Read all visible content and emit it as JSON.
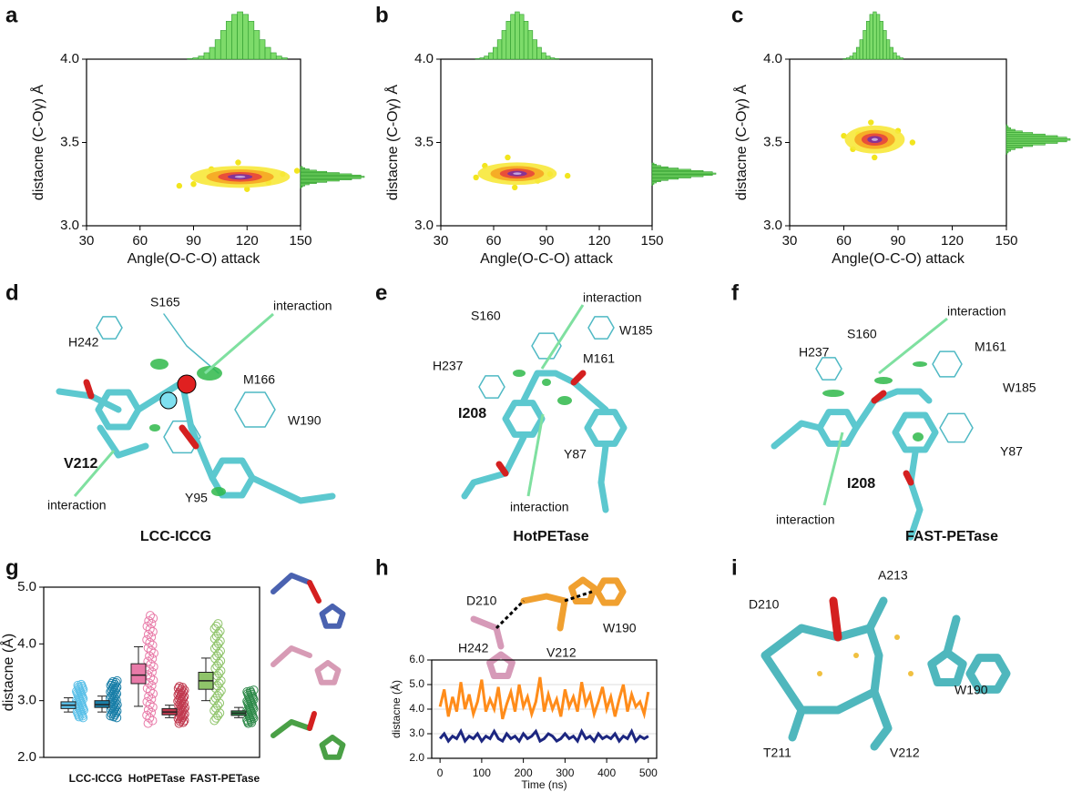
{
  "panel_labels": [
    "a",
    "b",
    "c",
    "d",
    "e",
    "f",
    "g",
    "h",
    "i"
  ],
  "chart_data": [
    {
      "type": "scatter",
      "xlabel": "Angle(O-C-O) attack",
      "ylabel": "distacne (C-Oγ) Å",
      "xlim": [
        30,
        150
      ],
      "xticks": [
        30,
        60,
        90,
        120,
        150
      ],
      "ylim": [
        3,
        4
      ],
      "yticks": [
        {
          "value": 3,
          "label": "3.0"
        },
        3.5,
        {
          "value": 4,
          "label": "4.0"
        }
      ],
      "color": "#f2e51e",
      "hist_color": "#7ddb6a",
      "density_colors": [
        "#f7e83a",
        "#f5a623",
        "#e8453c",
        "#7b2fa0",
        "#c9b3e6"
      ],
      "x": [
        117,
        105,
        128,
        90,
        140,
        82,
        148,
        115,
        120,
        100,
        132
      ],
      "y": [
        3.3,
        3.28,
        3.32,
        3.25,
        3.31,
        3.24,
        3.33,
        3.38,
        3.22,
        3.34,
        3.26
      ]
    },
    {
      "type": "scatter",
      "xlabel": "Angle(O-C-O) attack",
      "ylabel": "distacne (C-Oγ) Å",
      "xlim": [
        30,
        150
      ],
      "xticks": [
        30,
        60,
        90,
        120,
        150
      ],
      "ylim": [
        3,
        4
      ],
      "yticks": [
        {
          "value": 3,
          "label": "3.0"
        },
        3.5,
        {
          "value": 4,
          "label": "4.0"
        }
      ],
      "color": "#f2e51e",
      "hist_color": "#7ddb6a",
      "density_colors": [
        "#f7e83a",
        "#f5a623",
        "#e8453c",
        "#7b2fa0",
        "#c9b3e6"
      ],
      "x": [
        70,
        60,
        80,
        50,
        92,
        102,
        68,
        72,
        55,
        85
      ],
      "y": [
        3.32,
        3.3,
        3.34,
        3.29,
        3.31,
        3.3,
        3.41,
        3.23,
        3.36,
        3.27
      ]
    },
    {
      "type": "scatter",
      "xlabel": "Angle(O-C-O) attack",
      "ylabel": "distacne (C-Oγ) Å",
      "xlim": [
        30,
        150
      ],
      "xticks": [
        30,
        60,
        90,
        120,
        150
      ],
      "ylim": [
        3,
        4
      ],
      "yticks": [
        {
          "value": 3,
          "label": "3.0"
        },
        3.5,
        {
          "value": 4,
          "label": "4.0"
        }
      ],
      "color": "#f2e51e",
      "hist_color": "#7ddb6a",
      "density_colors": [
        "#f7e83a",
        "#f5a623",
        "#e8453c",
        "#7b2fa0",
        "#c9b3e6"
      ],
      "x": [
        76,
        68,
        85,
        60,
        98,
        75,
        77,
        90,
        65
      ],
      "y": [
        3.52,
        3.55,
        3.49,
        3.54,
        3.5,
        3.62,
        3.41,
        3.57,
        3.46
      ]
    },
    {
      "type": "box",
      "ylabel": "distacne (Å)",
      "ylim": [
        2,
        5
      ],
      "yticks": [
        {
          "value": 2,
          "label": "2.0"
        },
        {
          "value": 3,
          "label": "3.0"
        },
        {
          "value": 4,
          "label": "4.0"
        },
        {
          "value": 5,
          "label": "5.0"
        }
      ],
      "categories": [
        "LCC-ICCG",
        "HotPETase",
        "FAST-PETase"
      ],
      "series": [
        {
          "color": "#5bc0e8",
          "min": 2.8,
          "q1": 2.86,
          "median": 2.92,
          "q3": 2.98,
          "max": 3.05,
          "range": [
            2.7,
            3.3
          ]
        },
        {
          "color": "#1a7fa8",
          "min": 2.8,
          "q1": 2.88,
          "median": 2.93,
          "q3": 3.0,
          "max": 3.08,
          "range": [
            2.7,
            3.35
          ]
        },
        {
          "color": "#e87aa8",
          "min": 2.9,
          "q1": 3.3,
          "median": 3.45,
          "q3": 3.65,
          "max": 3.95,
          "range": [
            2.6,
            4.5
          ]
        },
        {
          "color": "#c0394f",
          "min": 2.7,
          "q1": 2.75,
          "median": 2.8,
          "q3": 2.86,
          "max": 2.92,
          "range": [
            2.6,
            3.25
          ]
        },
        {
          "color": "#8fc46a",
          "min": 3.0,
          "q1": 3.2,
          "median": 3.35,
          "q3": 3.5,
          "max": 3.75,
          "range": [
            2.65,
            4.4
          ]
        },
        {
          "color": "#2f8a4a",
          "min": 2.7,
          "q1": 2.74,
          "median": 2.78,
          "q3": 2.82,
          "max": 2.88,
          "range": [
            2.6,
            3.2
          ]
        }
      ]
    },
    {
      "type": "line",
      "xlabel": "Time (ns)",
      "ylabel": "distacne (Å)",
      "xlim": [
        -20,
        520
      ],
      "xticks": [
        0,
        100,
        200,
        300,
        400,
        500
      ],
      "ylim": [
        2,
        6
      ],
      "yticks": [
        {
          "value": 2,
          "label": "2.0"
        },
        {
          "value": 3,
          "label": "3.0"
        },
        {
          "value": 4,
          "label": "4.0"
        },
        {
          "value": 5,
          "label": "5.0"
        },
        {
          "value": 6,
          "label": "6.0"
        }
      ],
      "grid": true,
      "x": [
        0,
        10,
        20,
        30,
        40,
        50,
        60,
        70,
        80,
        90,
        100,
        110,
        120,
        130,
        140,
        150,
        160,
        170,
        180,
        190,
        200,
        210,
        220,
        230,
        240,
        250,
        260,
        270,
        280,
        290,
        300,
        310,
        320,
        330,
        340,
        350,
        360,
        370,
        380,
        390,
        400,
        410,
        420,
        430,
        440,
        450,
        460,
        470,
        480,
        490,
        500
      ],
      "series": [
        {
          "color": "#ff8c1a",
          "values": [
            4.1,
            4.8,
            3.7,
            4.5,
            3.9,
            5.1,
            4.0,
            4.6,
            3.8,
            4.3,
            5.2,
            3.9,
            4.4,
            4.0,
            4.9,
            3.6,
            4.2,
            4.7,
            3.9,
            5.0,
            4.1,
            4.5,
            3.8,
            4.3,
            5.3,
            3.9,
            4.6,
            4.0,
            4.4,
            3.7,
            4.8,
            4.1,
            4.5,
            3.9,
            5.1,
            4.2,
            4.6,
            3.8,
            4.3,
            4.9,
            4.0,
            4.5,
            3.7,
            4.4,
            5.0,
            3.9,
            4.6,
            4.1,
            4.3,
            3.8,
            4.7
          ]
        },
        {
          "color": "#1c2680",
          "values": [
            2.8,
            3.0,
            2.7,
            2.9,
            2.8,
            3.1,
            2.7,
            2.9,
            2.8,
            3.0,
            2.7,
            2.9,
            2.8,
            3.1,
            2.8,
            2.7,
            3.0,
            2.8,
            2.9,
            2.7,
            3.0,
            2.8,
            2.9,
            3.1,
            2.7,
            2.8,
            3.0,
            2.9,
            2.7,
            2.8,
            3.0,
            2.8,
            2.9,
            2.7,
            3.1,
            2.8,
            2.9,
            2.7,
            3.0,
            2.8,
            2.9,
            2.8,
            3.0,
            2.7,
            2.9,
            2.8,
            3.1,
            2.7,
            2.9,
            2.8,
            2.9
          ]
        }
      ]
    }
  ],
  "structures": {
    "d": {
      "title": "LCC-ICCG",
      "labels": [
        "S165",
        "interaction",
        "H242",
        "M166",
        "W190",
        "V212",
        "interaction",
        "Y95"
      ]
    },
    "e": {
      "title": "HotPETase",
      "labels": [
        "interaction",
        "S160",
        "W185",
        "H237",
        "M161",
        "I208",
        "Y87",
        "interaction"
      ]
    },
    "f": {
      "title": "FAST-PETase",
      "labels": [
        "interaction",
        "S160",
        "H237",
        "M161",
        "W185",
        "Y87",
        "I208",
        "interaction"
      ]
    },
    "h": {
      "labels": [
        "D210",
        "H242",
        "V212",
        "W190"
      ]
    },
    "i": {
      "labels": [
        "D210",
        "A213",
        "W190",
        "T211",
        "V212"
      ]
    }
  }
}
